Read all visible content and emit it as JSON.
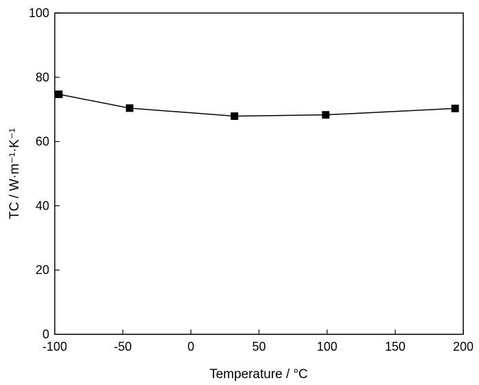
{
  "chart_data": {
    "type": "line",
    "title": "",
    "xlabel": "Temperature / °C",
    "ylabel": "TC / W·m⁻¹·K⁻¹",
    "xlim": [
      -100,
      200
    ],
    "ylim": [
      0,
      100
    ],
    "xticks": [
      -100,
      -50,
      0,
      50,
      100,
      150,
      200
    ],
    "yticks": [
      0,
      20,
      40,
      60,
      80,
      100
    ],
    "grid": false,
    "legend": "none",
    "series": [
      {
        "x": [
          -97,
          -45,
          32,
          99,
          194
        ],
        "y": [
          74.7,
          70.4,
          67.9,
          68.3,
          70.3
        ],
        "marker": "filled-square",
        "color": "#000000"
      }
    ]
  }
}
